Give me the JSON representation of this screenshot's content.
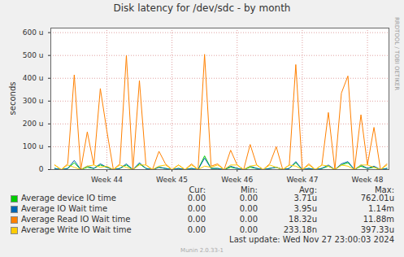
{
  "chart_data": {
    "type": "line",
    "title": "Disk latency for /dev/sdc - by month",
    "ylabel": "seconds",
    "side_text": "RRDTOOL / TOBI OETIKER",
    "footer": "Last update: Wed Nov 27 23:00:03 2024",
    "credit": "Munin 2.0.33-1",
    "stats_header": [
      "Cur:",
      "Min:",
      "Avg:",
      "Max:"
    ],
    "grid": true,
    "x": [
      43.2,
      43.3,
      43.4,
      43.5,
      43.6,
      43.7,
      43.8,
      43.9,
      44.0,
      44.1,
      44.2,
      44.3,
      44.4,
      44.5,
      44.6,
      44.7,
      44.8,
      44.9,
      45.0,
      45.1,
      45.2,
      45.3,
      45.4,
      45.5,
      45.6,
      45.7,
      45.8,
      45.9,
      46.0,
      46.1,
      46.2,
      46.3,
      46.4,
      46.5,
      46.6,
      46.7,
      46.8,
      46.9,
      47.0,
      47.1,
      47.2,
      47.3,
      47.4,
      47.5,
      47.6,
      47.7,
      47.8,
      47.9,
      48.0,
      48.1,
      48.2,
      48.3
    ],
    "xlim": [
      43.14,
      48.33
    ],
    "xticks": [
      {
        "value": 44,
        "label": "Week 44"
      },
      {
        "value": 45,
        "label": "Week 45"
      },
      {
        "value": 46,
        "label": "Week 46"
      },
      {
        "value": 47,
        "label": "Week 47"
      },
      {
        "value": 48,
        "label": "Week 48"
      }
    ],
    "ylim": [
      0,
      0.00062
    ],
    "yticks": [
      0,
      {
        "value": 0.0001,
        "label": "100 u"
      },
      {
        "value": 0.0002,
        "label": "200 u"
      },
      {
        "value": 0.0003,
        "label": "300 u"
      },
      {
        "value": 0.0004,
        "label": "400 u"
      },
      {
        "value": 0.0005,
        "label": "500 u"
      },
      {
        "value": 0.0006,
        "label": "600 u"
      }
    ],
    "series": [
      {
        "name": "Average device IO time",
        "color": "#00cc00",
        "stats": [
          "0.00",
          "0.00",
          "3.71u",
          "762.01u"
        ],
        "values": [
          5e-06,
          0,
          5e-06,
          3e-05,
          0,
          1e-05,
          5e-06,
          2e-05,
          1e-05,
          0,
          5e-06,
          2e-05,
          0,
          2.5e-05,
          5e-06,
          0,
          1e-05,
          5e-06,
          0,
          5e-06,
          0,
          5e-06,
          0,
          6e-05,
          5e-06,
          5e-06,
          0,
          1e-05,
          5e-06,
          0,
          1e-05,
          5e-06,
          0,
          5e-06,
          1e-05,
          0,
          5e-06,
          3e-05,
          0,
          5e-06,
          0,
          5e-06,
          1.5e-05,
          0,
          2e-05,
          3e-05,
          0,
          1.5e-05,
          5e-06,
          1e-05,
          0,
          5e-06
        ]
      },
      {
        "name": "Average IO Wait time",
        "color": "#0066b3",
        "stats": [
          "0.00",
          "0.00",
          "3.95u",
          "1.14m"
        ],
        "values": [
          5e-06,
          0,
          5e-06,
          4e-05,
          0,
          1.5e-05,
          5e-06,
          2.5e-05,
          1e-05,
          0,
          5e-06,
          2.5e-05,
          0,
          3e-05,
          5e-06,
          0,
          1e-05,
          5e-06,
          0,
          5e-06,
          0,
          5e-06,
          0,
          5e-05,
          5e-06,
          5e-06,
          0,
          1.5e-05,
          5e-06,
          0,
          1.5e-05,
          5e-06,
          0,
          5e-06,
          1e-05,
          0,
          5e-06,
          3.5e-05,
          0,
          5e-06,
          0,
          5e-06,
          2e-05,
          0,
          2.5e-05,
          3.5e-05,
          0,
          2e-05,
          5e-06,
          1.5e-05,
          0,
          5e-06
        ]
      },
      {
        "name": "Average Read IO Wait time",
        "color": "#ff8000",
        "stats": [
          "0.00",
          "0.00",
          "18.32u",
          "11.88m"
        ],
        "values": [
          2e-05,
          0,
          2.5e-05,
          0.000415,
          0,
          0.000165,
          2e-05,
          0.000355,
          0.00017,
          0,
          2.5e-05,
          0.0005,
          0,
          0.00039,
          2e-05,
          0,
          8e-05,
          2.5e-05,
          0,
          2e-05,
          0,
          2.5e-05,
          0,
          0.000505,
          1.5e-05,
          2.5e-05,
          0,
          8.5e-05,
          2e-05,
          0,
          0.00011,
          2e-05,
          0,
          2.5e-05,
          0.0001,
          0,
          2e-05,
          0.00046,
          0,
          2.5e-05,
          0,
          2e-05,
          0.00025,
          0,
          0.000335,
          0.00041,
          0,
          0.00024,
          2e-05,
          0.000185,
          0,
          2.5e-05
        ]
      },
      {
        "name": "Average Write IO Wait time",
        "color": "#ffcc00",
        "stats": [
          "0.00",
          "0.00",
          "233.18n",
          "397.33u"
        ],
        "values": [
          2e-05,
          0,
          2e-05,
          1e-05,
          0,
          1.5e-05,
          2e-05,
          1e-05,
          1.5e-05,
          0,
          2e-05,
          1e-05,
          0,
          2e-05,
          2e-05,
          0,
          1.5e-05,
          2e-05,
          0,
          2e-05,
          0,
          2e-05,
          0,
          1.5e-05,
          1e-05,
          2e-05,
          0,
          2e-05,
          2e-05,
          0,
          1.5e-05,
          2e-05,
          0,
          2e-05,
          1e-05,
          0,
          2e-05,
          1.5e-05,
          0,
          2e-05,
          0,
          2e-05,
          1.5e-05,
          0,
          2e-05,
          1.5e-05,
          0,
          2e-05,
          2e-05,
          1e-05,
          0,
          2e-05
        ]
      }
    ]
  }
}
